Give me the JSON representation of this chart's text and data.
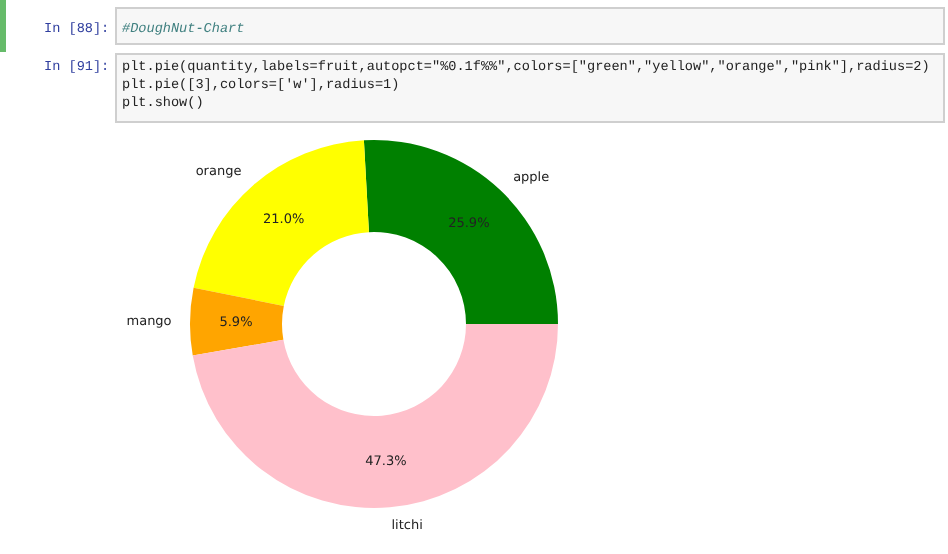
{
  "chart_data": {
    "type": "donut",
    "categories": [
      "apple",
      "orange",
      "mango",
      "litchi"
    ],
    "values": [
      25.9,
      21.0,
      5.9,
      47.3
    ],
    "colors": [
      "#008000",
      "#ffff00",
      "#ffa500",
      "#ffc0cb"
    ],
    "value_labels": [
      "25.9%",
      "21.0%",
      "5.9%",
      "47.3%"
    ],
    "annotations": [
      "In [88]:",
      "#DoughNut-Chart",
      "In [91]:",
      "plt.pie(quantity,labels=fruit,autopct=\"%0.1f%%\",colors=[\"green\",\"yellow\",\"orange\",\"pink\"],radius=2)",
      "plt.pie([3],colors=['w'],radius=1)",
      "plt.show()"
    ]
  }
}
